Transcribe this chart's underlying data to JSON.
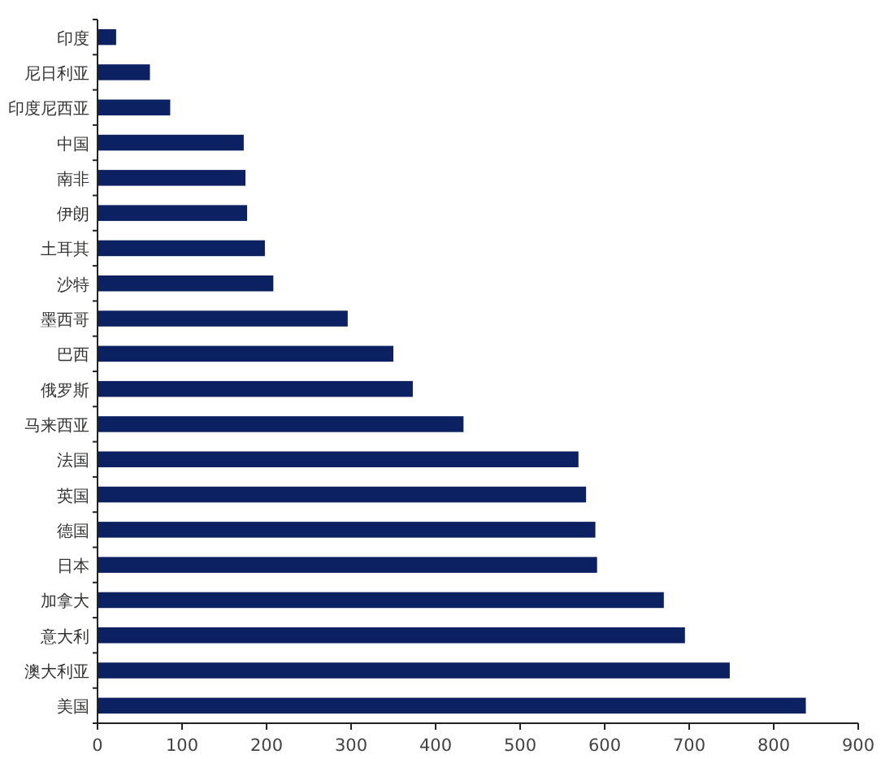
{
  "chart_data": {
    "type": "bar",
    "orientation": "horizontal",
    "categories": [
      "印度",
      "尼日利亚",
      "印度尼西亚",
      "中国",
      "南非",
      "伊朗",
      "土耳其",
      "沙特",
      "墨西哥",
      "巴西",
      "俄罗斯",
      "马来西亚",
      "法国",
      "英国",
      "德国",
      "日本",
      "加拿大",
      "意大利",
      "澳大利亚",
      "美国"
    ],
    "values": [
      22,
      62,
      86,
      173,
      175,
      177,
      198,
      208,
      296,
      350,
      373,
      433,
      569,
      578,
      589,
      591,
      670,
      695,
      748,
      838
    ],
    "color": "#0c2161",
    "xlim": [
      0,
      900
    ],
    "xticks": [
      0,
      100,
      200,
      300,
      400,
      500,
      600,
      700,
      800,
      900
    ]
  }
}
